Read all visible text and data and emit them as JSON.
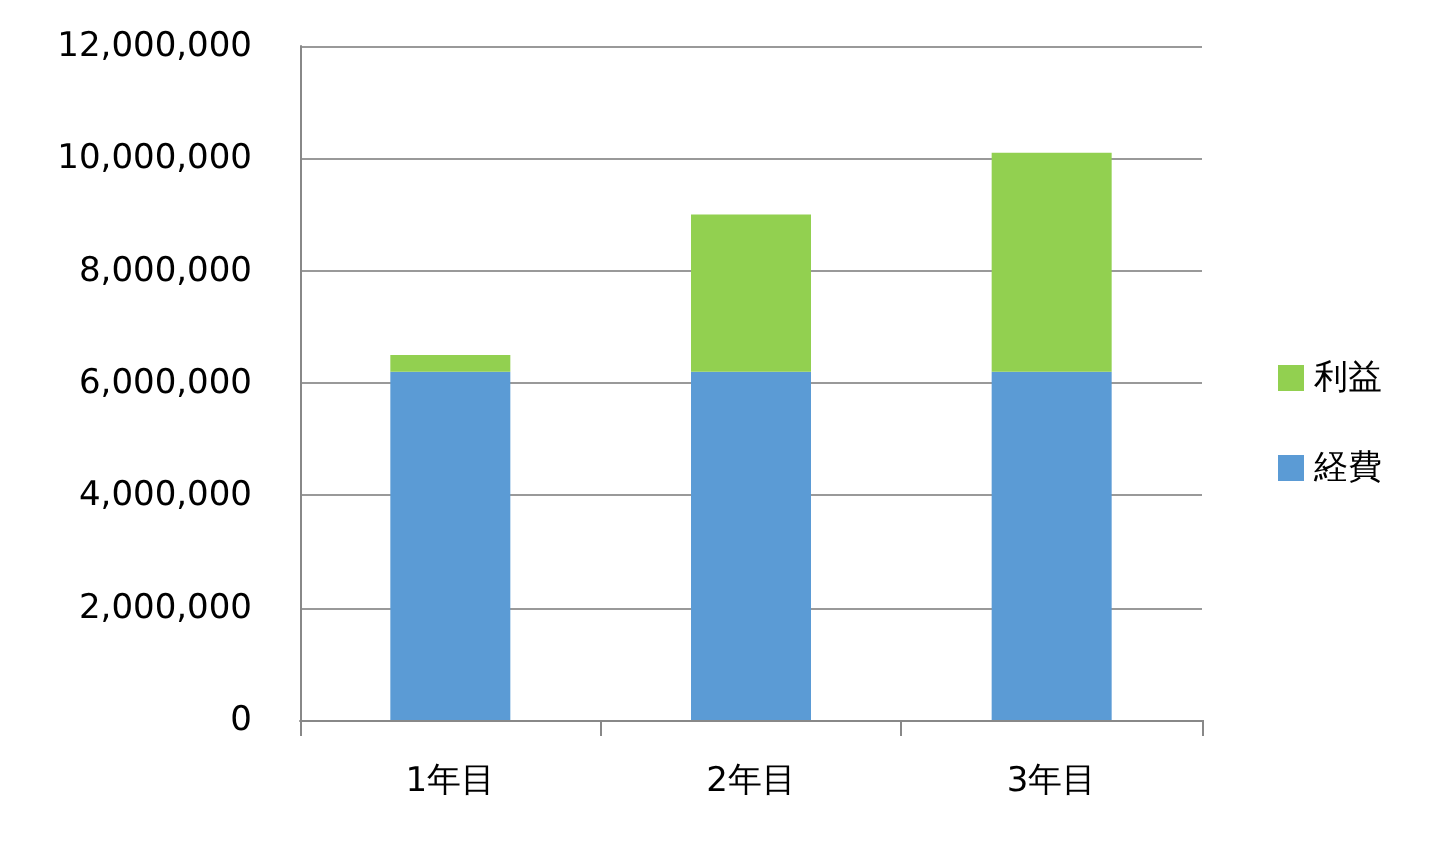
{
  "chart_data": {
    "type": "bar",
    "stacked": true,
    "categories": [
      "1年目",
      "2年目",
      "3年目"
    ],
    "series": [
      {
        "name": "経費",
        "color": "#5b9bd5",
        "values": [
          6200000,
          6200000,
          6200000
        ]
      },
      {
        "name": "利益",
        "color": "#92d050",
        "values": [
          300000,
          2800000,
          3900000
        ]
      }
    ],
    "ylim": [
      0,
      12000000
    ],
    "yticks": [
      0,
      {
        "value": 2000000,
        "label": "2,000,000"
      },
      {
        "value": 4000000,
        "label": "4,000,000"
      },
      {
        "value": 6000000,
        "label": "6,000,000"
      },
      {
        "value": 8000000,
        "label": "8,000,000"
      },
      {
        "value": 10000000,
        "label": "10,000,000"
      },
      {
        "value": 12000000,
        "label": "12,000,000"
      }
    ],
    "grid": "y",
    "legend": "right"
  }
}
